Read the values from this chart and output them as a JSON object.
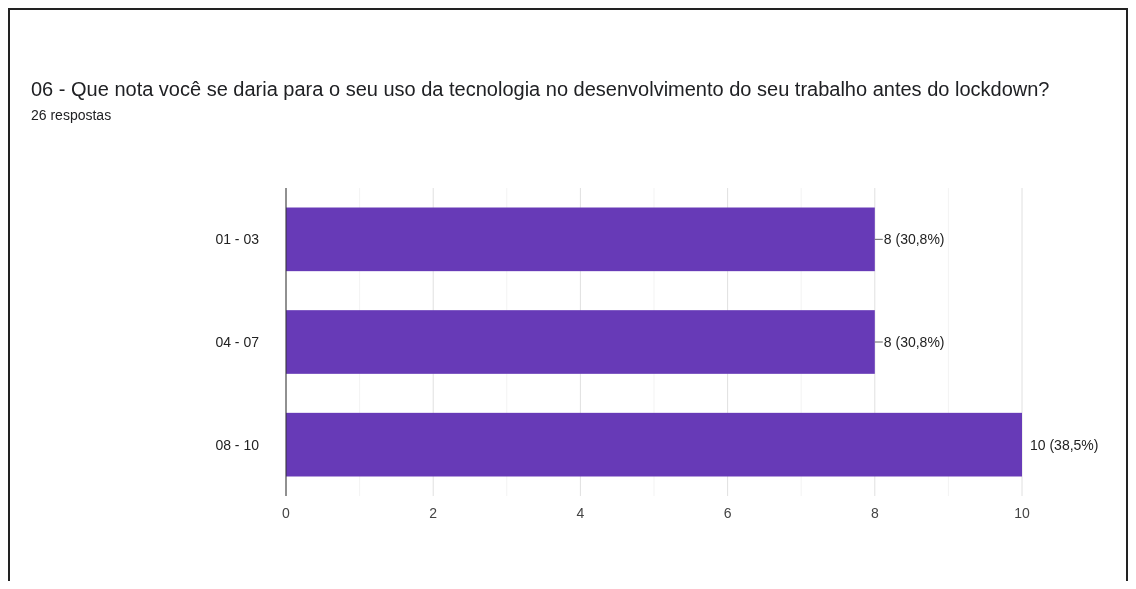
{
  "chart_data": {
    "type": "bar",
    "orientation": "horizontal",
    "title": "06 - Que nota você se daria para o seu uso da tecnologia no desenvolvimento do seu trabalho antes do lockdown?",
    "subtitle": "26 respostas",
    "categories": [
      "01 - 03",
      "04 - 07",
      "08 - 10"
    ],
    "values": [
      8,
      8,
      10
    ],
    "value_labels": [
      "8 (30,8%)",
      "8 (30,8%)",
      "10 (38,5%)"
    ],
    "color": "#673ab7",
    "xlim": [
      0,
      10
    ],
    "xticks": [
      0,
      {
        "value": 1,
        "label": null
      },
      2,
      {
        "value": 3,
        "label": null
      },
      4,
      {
        "value": 5,
        "label": null
      },
      6,
      {
        "value": 7,
        "label": null
      },
      8,
      {
        "value": 9,
        "label": null
      },
      10
    ],
    "grid": "x"
  }
}
